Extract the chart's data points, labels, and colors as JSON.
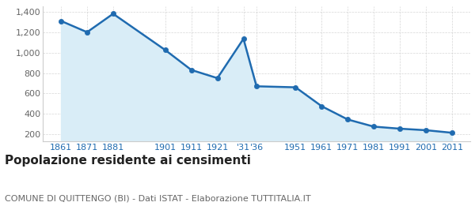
{
  "years": [
    1861,
    1871,
    1881,
    1901,
    1911,
    1921,
    1931,
    1936,
    1951,
    1961,
    1971,
    1981,
    1991,
    2001,
    2011
  ],
  "values": [
    1310,
    1200,
    1380,
    1025,
    830,
    750,
    1135,
    670,
    660,
    475,
    345,
    275,
    255,
    240,
    215
  ],
  "line_color": "#1f6bb0",
  "fill_color": "#d9edf7",
  "marker_color": "#1f6bb0",
  "grid_color": "#cccccc",
  "background_color": "#ffffff",
  "ylim_min": 130,
  "ylim_max": 1450,
  "yticks": [
    200,
    400,
    600,
    800,
    1000,
    1200,
    1400
  ],
  "ytick_labels": [
    "200",
    "400",
    "600",
    "800",
    "1,000",
    "1,200",
    "1,400"
  ],
  "x_tick_positions": [
    1861,
    1871,
    1881,
    1901,
    1911,
    1921,
    1931,
    1936,
    1951,
    1961,
    1971,
    1981,
    1991,
    2001,
    2011
  ],
  "x_tick_labels": [
    "1861",
    "1871",
    "1881",
    "1901",
    "1911",
    "1921",
    "'31",
    "'36",
    "1951",
    "1961",
    "1971",
    "1981",
    "1991",
    "2001",
    "2011"
  ],
  "xlim_min": 1854,
  "xlim_max": 2018,
  "title": "Popolazione residente ai censimenti",
  "subtitle": "COMUNE DI QUITTENGO (BI) - Dati ISTAT - Elaborazione TUTTITALIA.IT",
  "title_fontsize": 11,
  "subtitle_fontsize": 8,
  "tick_color": "#1f6bb0",
  "ytick_color": "#666666",
  "linewidth": 1.8,
  "markersize": 4.5
}
